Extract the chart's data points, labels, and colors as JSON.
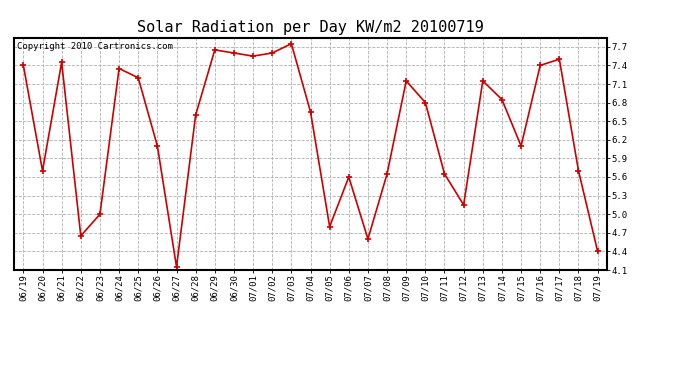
{
  "title": "Solar Radiation per Day KW/m2 20100719",
  "copyright_text": "Copyright 2010 Cartronics.com",
  "dates": [
    "06/19",
    "06/20",
    "06/21",
    "06/22",
    "06/23",
    "06/24",
    "06/25",
    "06/26",
    "06/27",
    "06/28",
    "06/29",
    "06/30",
    "07/01",
    "07/02",
    "07/03",
    "07/04",
    "07/05",
    "07/06",
    "07/07",
    "07/08",
    "07/09",
    "07/10",
    "07/11",
    "07/12",
    "07/13",
    "07/14",
    "07/15",
    "07/16",
    "07/17",
    "07/18",
    "07/19"
  ],
  "values": [
    7.4,
    5.7,
    7.45,
    4.65,
    5.0,
    7.35,
    7.2,
    6.1,
    4.15,
    6.6,
    7.65,
    7.6,
    7.55,
    7.6,
    7.75,
    6.65,
    4.8,
    5.6,
    4.6,
    5.65,
    7.15,
    6.8,
    5.65,
    5.15,
    7.15,
    6.85,
    6.1,
    7.4,
    7.5,
    5.7,
    4.4
  ],
  "line_color": "#cc0000",
  "marker_color": "#cc0000",
  "bg_color": "#ffffff",
  "plot_bg_color": "#ffffff",
  "grid_color": "#b0b0b0",
  "ylim_min": 4.1,
  "ylim_max": 7.85,
  "yticks": [
    4.1,
    4.4,
    4.7,
    5.0,
    5.3,
    5.6,
    5.9,
    6.2,
    6.5,
    6.8,
    7.1,
    7.4,
    7.7
  ],
  "title_fontsize": 11,
  "tick_fontsize": 6.5,
  "copyright_fontsize": 6.5
}
